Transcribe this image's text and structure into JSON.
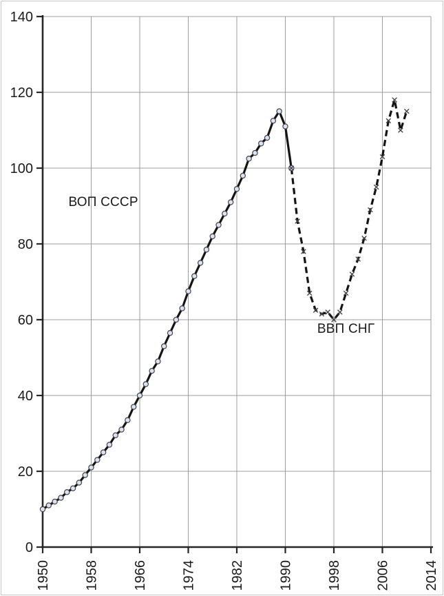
{
  "chart_data": {
    "type": "line",
    "title": "",
    "xlabel": "",
    "ylabel": "",
    "xlim": [
      1950,
      2014
    ],
    "ylim": [
      0,
      140
    ],
    "x_ticks": [
      1950,
      1958,
      1966,
      1974,
      1982,
      1990,
      1998,
      2006,
      2014
    ],
    "y_ticks": [
      0,
      20,
      40,
      60,
      80,
      100,
      120,
      140
    ],
    "grid": true,
    "legend_position": "none",
    "series": [
      {
        "name": "ВОП СССР",
        "line_style": "solid",
        "marker": "circle",
        "start_year": 1950,
        "values": [
          10,
          11,
          12,
          13,
          14.5,
          15.5,
          17,
          19,
          21,
          23,
          25,
          27,
          29.5,
          31,
          33.5,
          37,
          40,
          43,
          46.5,
          49,
          53,
          56.5,
          60,
          63,
          67.5,
          71.5,
          75,
          78.5,
          82,
          85,
          88,
          91,
          94.5,
          98,
          102.5,
          104,
          106.5,
          108,
          112.5,
          115,
          111,
          100
        ]
      },
      {
        "name": "ВВП СНГ",
        "line_style": "dashed",
        "marker": "x",
        "start_year": 1991,
        "values": [
          100,
          86,
          78,
          67,
          62.5,
          61.5,
          62,
          60,
          62,
          67,
          72,
          76,
          81.5,
          89,
          95,
          103,
          112.5,
          118,
          110,
          115
        ]
      }
    ],
    "annotations": [
      {
        "text": "ВОП СССР",
        "x": 1960,
        "y": 91
      },
      {
        "text": "ВВП СНГ",
        "x": 2000,
        "y": 57.5
      }
    ]
  },
  "style": {
    "line_color": "#141414",
    "grid_color": "#9c9c9c",
    "axis_color": "#262626",
    "text_color": "#1a1a1a",
    "marker_fill": "#dce3ef",
    "marker_stroke": "#43434b",
    "background": "#ffffff",
    "border_color": "#c6c6c6"
  }
}
